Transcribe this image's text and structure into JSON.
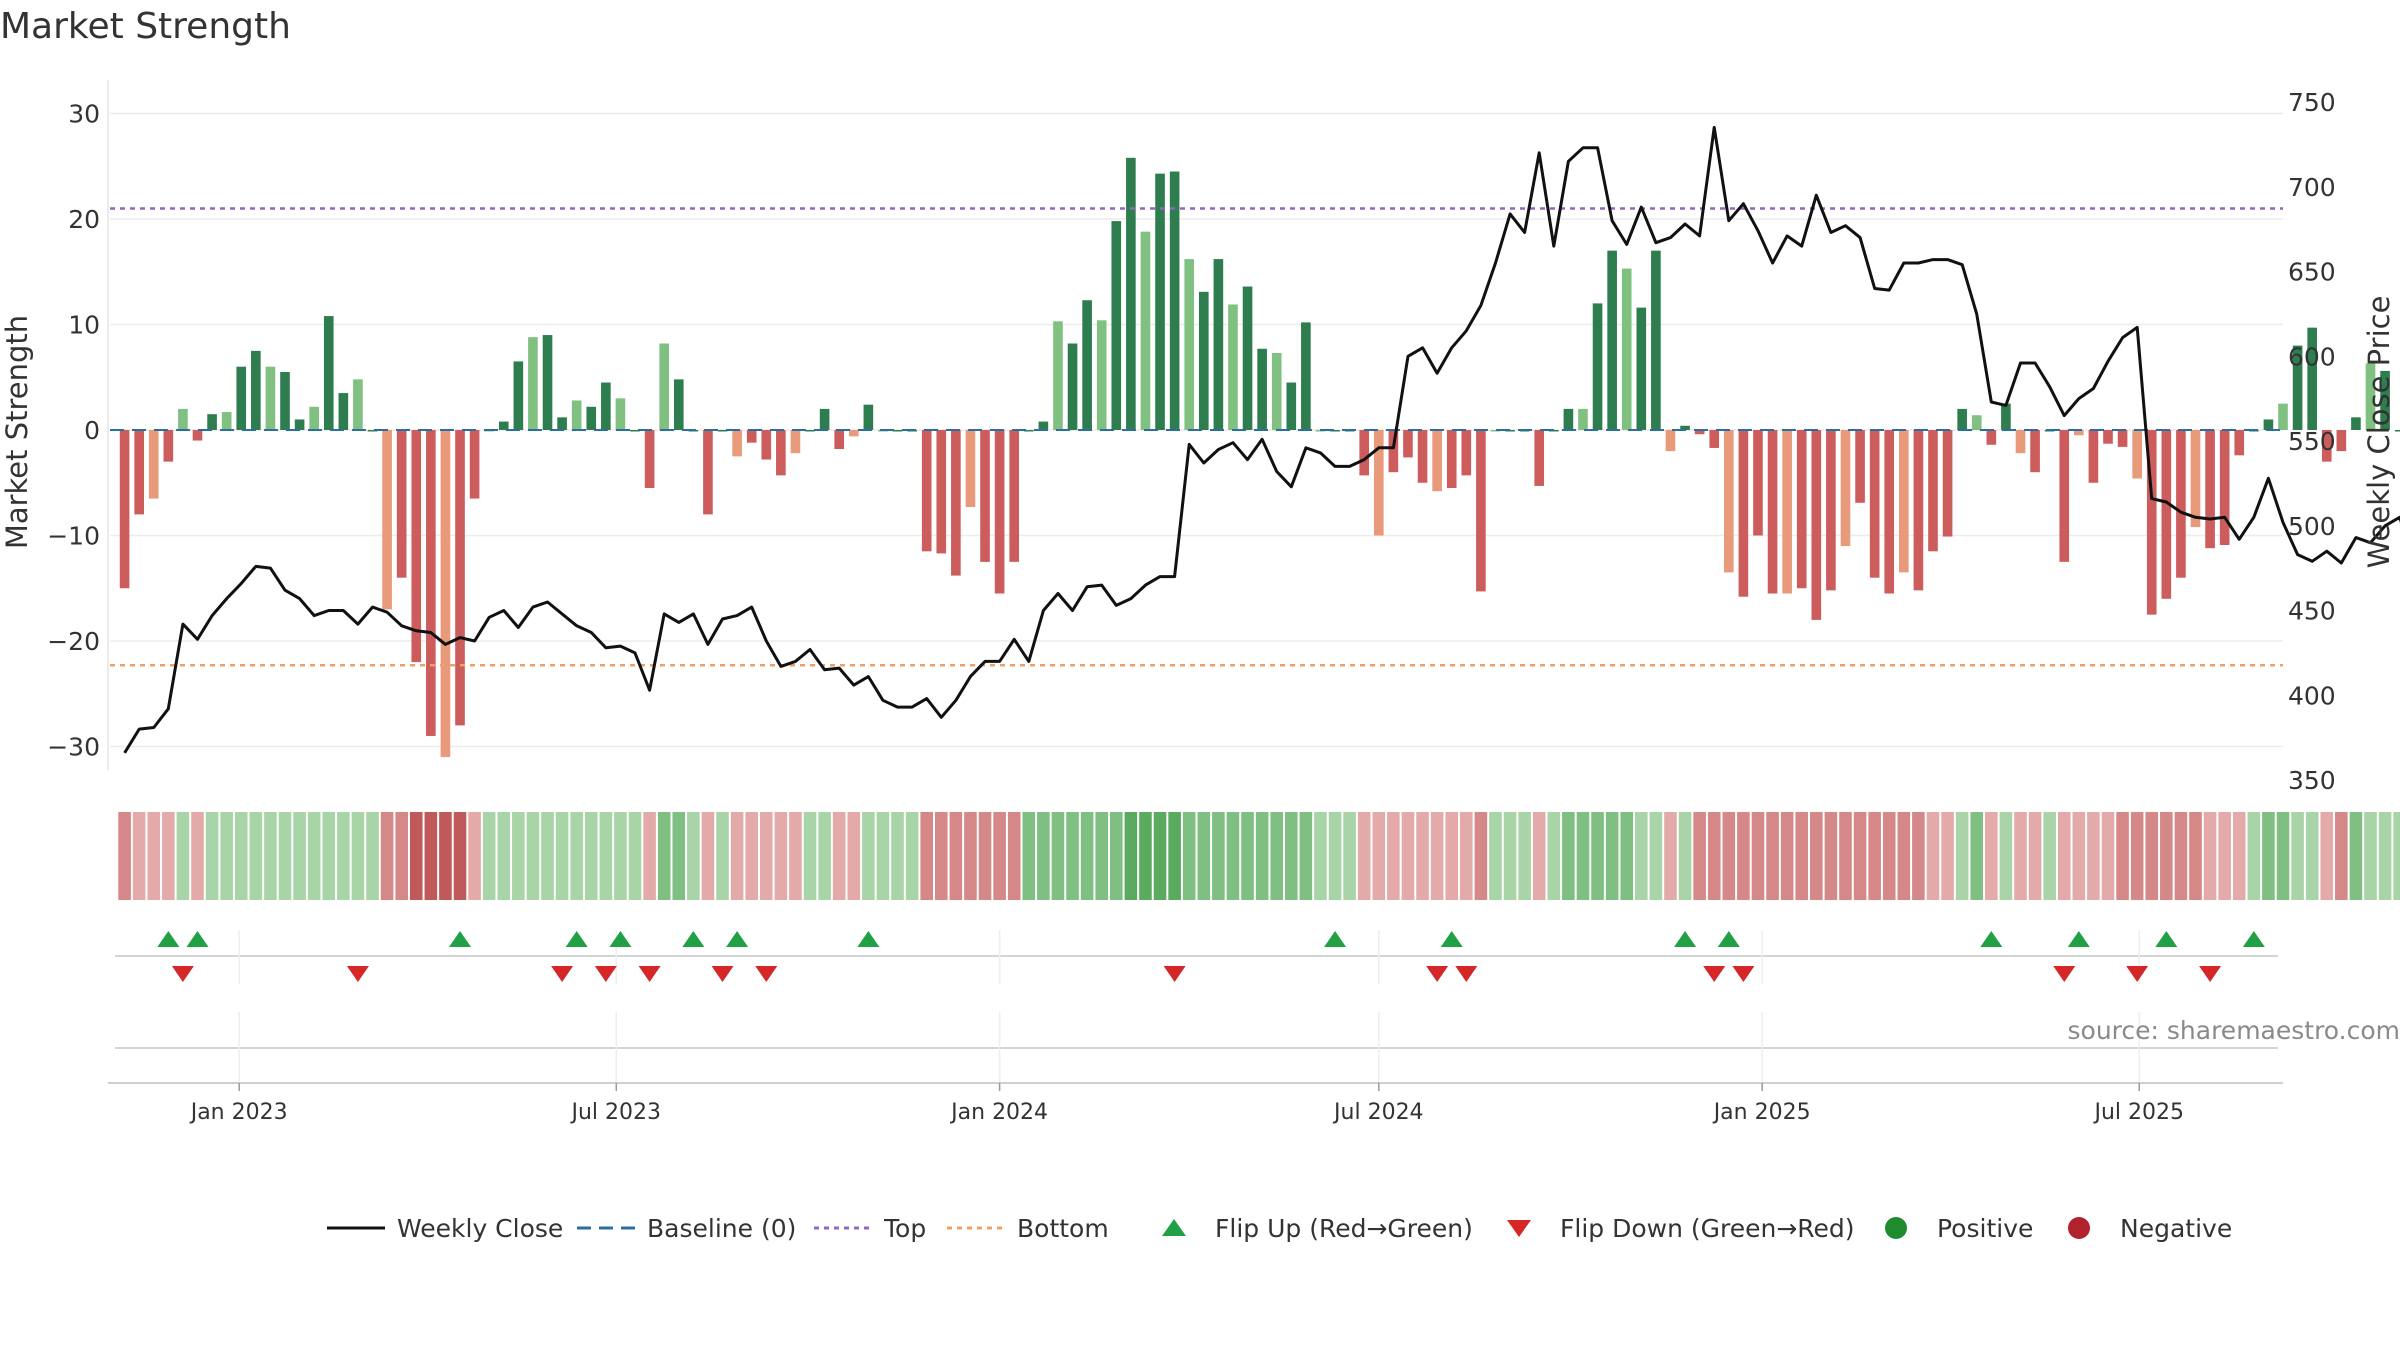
{
  "title": "Market Strength",
  "source": "source: sharemaestro.com",
  "chart_data": {
    "type": "bar+line",
    "title": "Market Strength",
    "ylabel_left": "Market Strength",
    "ylabel_right": "Weekly Close Price",
    "ylim_left": [
      -34,
      34
    ],
    "ylim_right": [
      343,
      758
    ],
    "yticks_left": [
      -30,
      -20,
      -10,
      0,
      10,
      20,
      30
    ],
    "yticks_right": [
      350,
      400,
      450,
      500,
      550,
      600,
      650,
      700,
      750
    ],
    "ytick_labels_left": [
      "−30",
      "−20",
      "−10",
      "0",
      "10",
      "20",
      "30"
    ],
    "ytick_labels_right": [
      "350",
      "400",
      "450",
      "500",
      "550",
      "600",
      "650",
      "700",
      "750"
    ],
    "xlim": [
      "2022-10-31",
      "2025-09-08"
    ],
    "xticks": [
      "2023-01-01",
      "2023-07-01",
      "2024-01-01",
      "2024-07-01",
      "2025-01-01",
      "2025-07-01"
    ],
    "xtick_labels": [
      "Jan 2023",
      "Jul 2023",
      "Jan 2024",
      "Jul 2024",
      "Jan 2025",
      "Jul 2025"
    ],
    "week_start": "2022-11-07",
    "week_interval_days": 7,
    "top_threshold": 21,
    "bottom_threshold": -22.3,
    "strength": [
      -15,
      -8,
      -6.5,
      -3,
      2,
      -1,
      1.5,
      1.7,
      6,
      7.5,
      6,
      5.5,
      1,
      2.2,
      10.8,
      3.5,
      4.8,
      0,
      -17,
      -14,
      -22,
      -29,
      -31,
      -28,
      -6.5,
      0,
      0.8,
      6.5,
      8.8,
      9,
      1.2,
      2.8,
      2.2,
      4.5,
      3,
      0,
      -5.5,
      8.2,
      4.8,
      0,
      -8,
      0,
      -2.5,
      -1.2,
      -2.8,
      -4.3,
      -2.2,
      0,
      2,
      -1.8,
      -0.6,
      2.4,
      0,
      0,
      0,
      -11.5,
      -11.7,
      -13.8,
      -7.3,
      -12.5,
      -15.5,
      -12.5,
      0,
      0.8,
      10.3,
      8.2,
      12.3,
      10.4,
      19.8,
      25.8,
      18.8,
      24.3,
      24.5,
      16.2,
      13.1,
      16.2,
      11.9,
      13.6,
      7.7,
      7.3,
      4.5,
      10.2,
      0,
      0,
      0,
      -4.3,
      -10,
      -4,
      -2.6,
      -5,
      -5.8,
      -5.5,
      -4.3,
      -15.3,
      0,
      0,
      0,
      -5.3,
      0,
      2,
      2,
      12,
      17,
      15.3,
      11.6,
      17,
      -2,
      0.4,
      -0.4,
      -1.7,
      -13.5,
      -15.8,
      -10,
      -15.5,
      -15.5,
      -15,
      -18,
      -15.2,
      -11,
      -6.9,
      -14,
      -15.5,
      -13.5,
      -15.2,
      -11.5,
      -10.1,
      2,
      1.4,
      -1.4,
      2.5,
      -2.2,
      -4,
      0,
      -12.5,
      -0.5,
      -5,
      -1.3,
      -1.6,
      -4.6,
      -17.5,
      -16,
      -14,
      -9.2,
      -11.2,
      -10.9,
      -2.4,
      0,
      1,
      2.5,
      8,
      9.7,
      -3,
      -2,
      1.2,
      6.3,
      5.6,
      0,
      0,
      -4,
      -6,
      -0.3,
      0,
      7.2,
      0,
      -3.8,
      -8.3,
      -9.5,
      -11,
      0,
      8.8,
      7.7,
      12,
      15.5,
      6.7
    ],
    "weekly_close": [
      366,
      380,
      381,
      392,
      442,
      433,
      447,
      457,
      466,
      476,
      475,
      462,
      457,
      447,
      450,
      450,
      442,
      452,
      449,
      441,
      438,
      437,
      430,
      434,
      432,
      446,
      450,
      440,
      452,
      455,
      448,
      441,
      437,
      428,
      429,
      425,
      403,
      448,
      443,
      448,
      430,
      445,
      447,
      452,
      432,
      417,
      420,
      427,
      415,
      416,
      406,
      411,
      397,
      393,
      393,
      398,
      387,
      397,
      411,
      420,
      420,
      433,
      420,
      450,
      460,
      450,
      464,
      465,
      453,
      457,
      465,
      470,
      470,
      548,
      537,
      545,
      549,
      539,
      551,
      532,
      523,
      546,
      543,
      535,
      535,
      539,
      546,
      546,
      600,
      605,
      590,
      605,
      615,
      630,
      655,
      684,
      673,
      720,
      665,
      715,
      723,
      723,
      680,
      666,
      688,
      667,
      670,
      678,
      671,
      735,
      680,
      690,
      674,
      655,
      671,
      665,
      695,
      673,
      677,
      670,
      640,
      639,
      655,
      655,
      657,
      657,
      654,
      625,
      573,
      571,
      596,
      596,
      582,
      565,
      575,
      581,
      597,
      611,
      617,
      516,
      514,
      508,
      505,
      504,
      505,
      492,
      505,
      528,
      502,
      483,
      479,
      485,
      478,
      493,
      490,
      500,
      505,
      478
    ],
    "regime_levels": [
      2,
      1,
      1,
      1,
      1,
      1,
      1,
      1,
      1,
      1,
      1,
      1,
      1,
      1,
      1,
      1,
      1,
      1,
      2,
      2,
      3,
      3,
      3,
      3,
      1,
      1,
      1,
      1,
      1,
      1,
      1,
      1,
      1,
      1,
      1,
      1,
      1,
      2,
      2,
      1,
      1,
      1,
      1,
      1,
      1,
      1,
      1,
      1,
      1,
      1,
      1,
      1,
      1,
      1,
      1,
      2,
      2,
      2,
      2,
      2,
      2,
      2,
      2,
      2,
      2,
      2,
      2,
      2,
      2,
      3,
      3,
      3,
      3,
      2,
      2,
      2,
      2,
      2,
      2,
      2,
      2,
      2,
      1,
      1,
      1,
      1,
      1,
      1,
      1,
      1,
      1,
      1,
      1,
      2,
      1,
      1,
      1,
      1,
      1,
      2,
      2,
      2,
      2,
      2,
      1,
      1,
      1,
      1,
      2,
      2,
      2,
      2,
      2,
      2,
      2,
      2,
      2,
      2,
      2,
      2,
      2,
      2,
      2,
      2,
      1,
      1,
      1,
      2,
      1,
      1,
      1,
      1,
      1,
      1,
      1,
      1,
      1,
      2,
      2,
      2,
      2,
      2,
      2,
      1,
      1,
      1,
      1,
      2,
      2,
      1,
      1,
      1,
      2,
      2,
      1,
      1,
      1,
      1,
      2,
      1,
      1,
      1,
      1,
      1,
      2,
      2,
      2,
      2,
      2
    ],
    "flip_up_dates": [
      "2022-11-28",
      "2022-12-12",
      "2023-04-17",
      "2023-06-12",
      "2023-07-03",
      "2023-08-07",
      "2023-08-28",
      "2023-10-30",
      "2024-06-10",
      "2024-08-05",
      "2024-11-25",
      "2024-12-16",
      "2025-04-21",
      "2025-06-02",
      "2025-07-14",
      "2025-08-25"
    ],
    "flip_down_dates": [
      "2022-12-05",
      "2023-02-27",
      "2023-06-05",
      "2023-06-26",
      "2023-07-17",
      "2023-08-21",
      "2023-09-11",
      "2024-03-25",
      "2024-07-29",
      "2024-08-12",
      "2024-12-09",
      "2024-12-23",
      "2025-05-26",
      "2025-06-30",
      "2025-08-04"
    ],
    "colors": {
      "strong_positive": "#2e7d4f",
      "mild_positive": "#80c080",
      "strong_negative": "#cd5c5c",
      "mild_negative": "#e99a7a",
      "weekly_close": "#111111",
      "baseline": "#2c6e9e",
      "top": "#9467bd",
      "bottom": "#f0a066",
      "flip_up": "#22a045",
      "flip_down": "#d62728",
      "positive_marker": "#1f8b2c",
      "negative_marker": "#b2222c"
    }
  },
  "legend": [
    {
      "label": "Weekly Close",
      "symbol": "solid-line"
    },
    {
      "label": "Baseline (0)",
      "symbol": "dashed-line"
    },
    {
      "label": "Top",
      "symbol": "dotted-line-purple"
    },
    {
      "label": "Bottom",
      "symbol": "dotted-line-orange"
    },
    {
      "label": "Flip Up (Red→Green)",
      "symbol": "triangle-up-green"
    },
    {
      "label": "Flip Down (Green→Red)",
      "symbol": "triangle-down-red"
    },
    {
      "label": "Positive",
      "symbol": "circle-green"
    },
    {
      "label": "Negative",
      "symbol": "circle-red"
    }
  ]
}
